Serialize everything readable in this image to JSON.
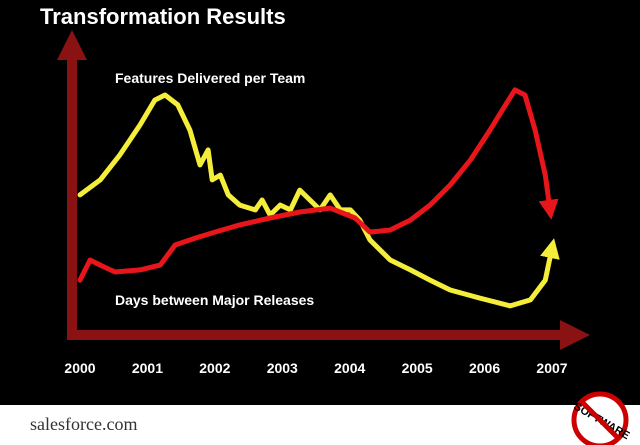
{
  "chart_data": {
    "type": "line",
    "title": "Transformation Results",
    "xlim": [
      2000,
      2007
    ],
    "xticks": [
      2000,
      2001,
      2002,
      2003,
      2004,
      2005,
      2006,
      2007
    ],
    "ylim": [
      0,
      100
    ],
    "grid": false,
    "series": [
      {
        "name": "Features Delivered per Team",
        "color": "#f4ee3a",
        "x": [
          2000,
          2000.3,
          2000.59,
          2000.89,
          2001.11,
          2001.26,
          2001.45,
          2001.63,
          2001.78,
          2001.9,
          2001.96,
          2002.08,
          2002.2,
          2002.37,
          2002.6,
          2002.7,
          2002.82,
          2002.97,
          2003.12,
          2003.26,
          2003.41,
          2003.56,
          2003.71,
          2003.86,
          2004.01,
          2004.15,
          2004.3,
          2004.6,
          2004.9,
          2005.19,
          2005.49,
          2005.93,
          2006.38,
          2006.68,
          2006.9,
          2007
        ],
        "values": [
          46.7,
          51.7,
          60,
          70,
          78.3,
          80,
          76.7,
          68.3,
          56.7,
          61.7,
          51.7,
          53.3,
          46.7,
          43.3,
          41.7,
          45,
          40,
          43.3,
          41.7,
          48.3,
          45,
          41.7,
          46.7,
          41.7,
          41.7,
          38.3,
          31.7,
          25,
          21.7,
          18.3,
          15,
          12.3,
          9.7,
          11.7,
          18.3,
          29
        ]
      },
      {
        "name": "Days between Major Releases",
        "color": "#e8161b",
        "x": [
          2000,
          2000.15,
          2000.3,
          2000.52,
          2000.89,
          2001.19,
          2001.41,
          2001.71,
          2002.0,
          2002.37,
          2002.82,
          2003.26,
          2003.71,
          2004.08,
          2004.3,
          2004.6,
          2004.9,
          2005.19,
          2005.49,
          2005.79,
          2006.08,
          2006.31,
          2006.45,
          2006.6,
          2006.75,
          2006.9,
          2006.97
        ],
        "values": [
          18.3,
          25,
          23.3,
          21,
          21.7,
          23.3,
          30,
          32.3,
          34.3,
          36.7,
          39,
          41,
          42.3,
          39,
          34.3,
          35,
          38.3,
          43.3,
          50,
          58.3,
          68.3,
          76.7,
          81.7,
          80,
          68.3,
          53.3,
          41.7
        ]
      }
    ]
  },
  "footer": {
    "logo": "salesforce.com",
    "badge": "SOFTWARE"
  }
}
